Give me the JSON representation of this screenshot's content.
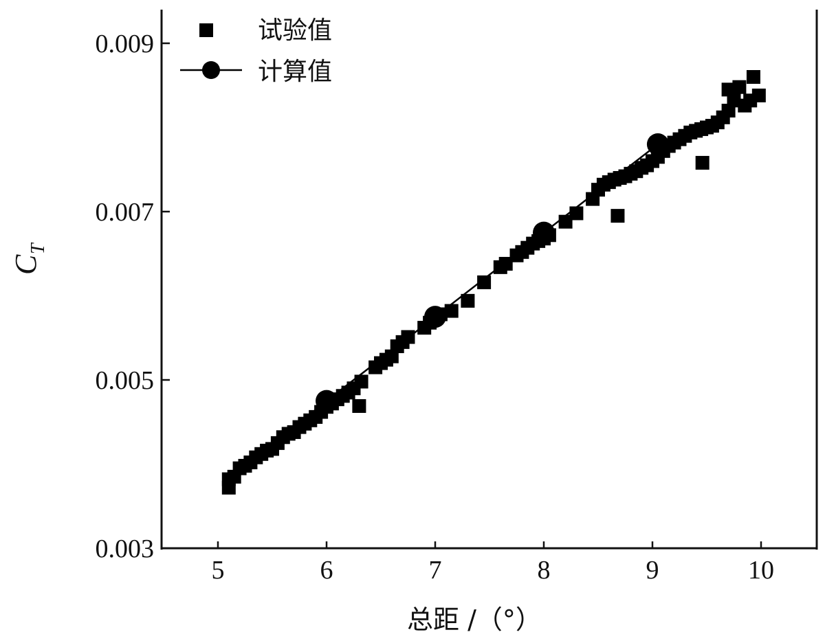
{
  "chart_data": {
    "type": "scatter",
    "title": "",
    "xlabel": "总距 /（°）",
    "ylabel": "C",
    "ylabel_subscript": "T",
    "xlim": [
      4.5,
      10.5
    ],
    "ylim": [
      0.003,
      0.0095
    ],
    "xticks": [
      "5",
      "6",
      "7",
      "8",
      "9",
      "10"
    ],
    "yticks": [
      "0.003",
      "0.005",
      "0.007",
      "0.009"
    ],
    "grid": false,
    "legend_position": "top-left",
    "series": [
      {
        "name": "试验值",
        "marker": "square",
        "line": false,
        "color": "#000000",
        "points": [
          [
            5.1,
            0.00372
          ],
          [
            5.1,
            0.00382
          ],
          [
            5.15,
            0.00385
          ],
          [
            5.2,
            0.00395
          ],
          [
            5.25,
            0.00398
          ],
          [
            5.3,
            0.00402
          ],
          [
            5.35,
            0.00408
          ],
          [
            5.4,
            0.00412
          ],
          [
            5.45,
            0.00416
          ],
          [
            5.5,
            0.00418
          ],
          [
            5.55,
            0.00425
          ],
          [
            5.6,
            0.00432
          ],
          [
            5.65,
            0.00436
          ],
          [
            5.7,
            0.00438
          ],
          [
            5.75,
            0.00444
          ],
          [
            5.8,
            0.00448
          ],
          [
            5.85,
            0.00452
          ],
          [
            5.9,
            0.00456
          ],
          [
            5.95,
            0.00462
          ],
          [
            6.0,
            0.00468
          ],
          [
            6.05,
            0.00472
          ],
          [
            6.1,
            0.00477
          ],
          [
            6.15,
            0.00481
          ],
          [
            6.2,
            0.00485
          ],
          [
            6.25,
            0.0049
          ],
          [
            6.3,
            0.00469
          ],
          [
            6.32,
            0.00498
          ],
          [
            6.45,
            0.00515
          ],
          [
            6.5,
            0.0052
          ],
          [
            6.55,
            0.00524
          ],
          [
            6.6,
            0.00528
          ],
          [
            6.65,
            0.0054
          ],
          [
            6.7,
            0.00545
          ],
          [
            6.75,
            0.00551
          ],
          [
            6.9,
            0.00562
          ],
          [
            6.95,
            0.00568
          ],
          [
            7.0,
            0.00575
          ],
          [
            7.05,
            0.00578
          ],
          [
            7.15,
            0.00582
          ],
          [
            7.3,
            0.00594
          ],
          [
            7.45,
            0.00616
          ],
          [
            7.6,
            0.00634
          ],
          [
            7.65,
            0.00638
          ],
          [
            7.75,
            0.00648
          ],
          [
            7.8,
            0.00652
          ],
          [
            7.85,
            0.00657
          ],
          [
            7.9,
            0.00662
          ],
          [
            7.95,
            0.00665
          ],
          [
            8.0,
            0.00668
          ],
          [
            8.05,
            0.00672
          ],
          [
            8.2,
            0.00688
          ],
          [
            8.3,
            0.00698
          ],
          [
            8.45,
            0.00715
          ],
          [
            8.5,
            0.00726
          ],
          [
            8.55,
            0.00732
          ],
          [
            8.6,
            0.00735
          ],
          [
            8.65,
            0.00738
          ],
          [
            8.7,
            0.0074
          ],
          [
            8.68,
            0.00695
          ],
          [
            8.75,
            0.00742
          ],
          [
            8.8,
            0.00745
          ],
          [
            8.85,
            0.00748
          ],
          [
            8.9,
            0.00752
          ],
          [
            8.95,
            0.00755
          ],
          [
            9.0,
            0.0076
          ],
          [
            9.05,
            0.00765
          ],
          [
            9.1,
            0.00772
          ],
          [
            9.15,
            0.00778
          ],
          [
            9.2,
            0.00782
          ],
          [
            9.25,
            0.00786
          ],
          [
            9.3,
            0.0079
          ],
          [
            9.35,
            0.00794
          ],
          [
            9.4,
            0.00796
          ],
          [
            9.45,
            0.00798
          ],
          [
            9.46,
            0.00758
          ],
          [
            9.5,
            0.008
          ],
          [
            9.55,
            0.00802
          ],
          [
            9.6,
            0.00806
          ],
          [
            9.65,
            0.00812
          ],
          [
            9.7,
            0.0082
          ],
          [
            9.75,
            0.00832
          ],
          [
            9.7,
            0.00845
          ],
          [
            9.75,
            0.00842
          ],
          [
            9.8,
            0.00848
          ],
          [
            9.85,
            0.00826
          ],
          [
            9.9,
            0.00832
          ],
          [
            9.93,
            0.0086
          ],
          [
            9.98,
            0.00838
          ]
        ]
      },
      {
        "name": "计算值",
        "marker": "circle",
        "line": true,
        "color": "#000000",
        "points": [
          [
            5.1,
            0.00382
          ],
          [
            6.0,
            0.00475
          ],
          [
            7.0,
            0.00575
          ],
          [
            8.0,
            0.00675
          ],
          [
            9.0,
            0.00775
          ],
          [
            9.05,
            0.0078
          ]
        ],
        "marked_points": [
          [
            6.0,
            0.00475
          ],
          [
            7.0,
            0.00575
          ],
          [
            8.0,
            0.00675
          ],
          [
            9.05,
            0.0078
          ]
        ]
      }
    ]
  }
}
